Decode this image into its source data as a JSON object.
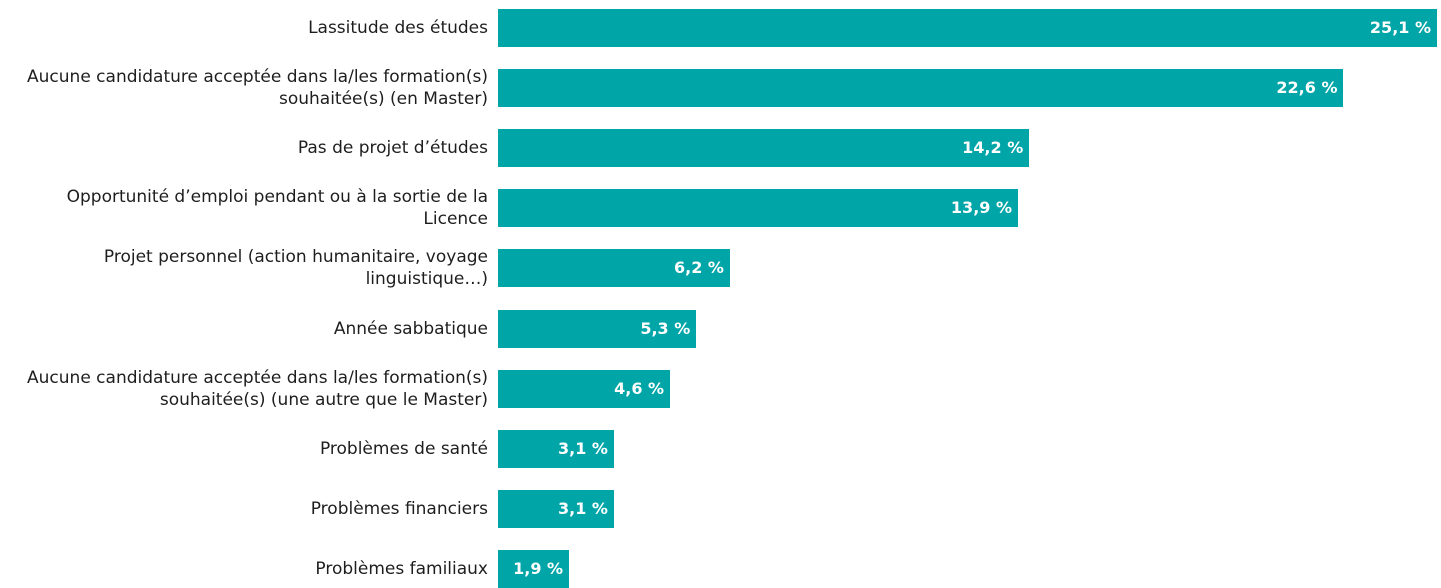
{
  "chart_data": {
    "type": "bar",
    "orientation": "horizontal",
    "categories": [
      "Lassitude des études",
      "Aucune candidature acceptée dans la/les formation(s) souhaitée(s) (en Master)",
      "Pas de projet d’études",
      "Opportunité d’emploi pendant ou à la sortie de la Licence",
      "Projet personnel (action humanitaire, voyage linguistique…)",
      "Année sabbatique",
      "Aucune candidature acceptée dans la/les formation(s) souhaitée(s) (une autre que le Master)",
      "Problèmes de santé",
      "Problèmes financiers",
      "Problèmes familiaux"
    ],
    "values": [
      25.1,
      22.6,
      14.2,
      13.9,
      6.2,
      5.3,
      4.6,
      3.1,
      3.1,
      1.9
    ],
    "value_labels": [
      "25,1 %",
      "22,6 %",
      "14,2 %",
      "13,9 %",
      "6,2 %",
      "5,3 %",
      "4,6 %",
      "3,1 %",
      "3,1 %",
      "1,9 %"
    ],
    "color": "#00a5a8"
  }
}
